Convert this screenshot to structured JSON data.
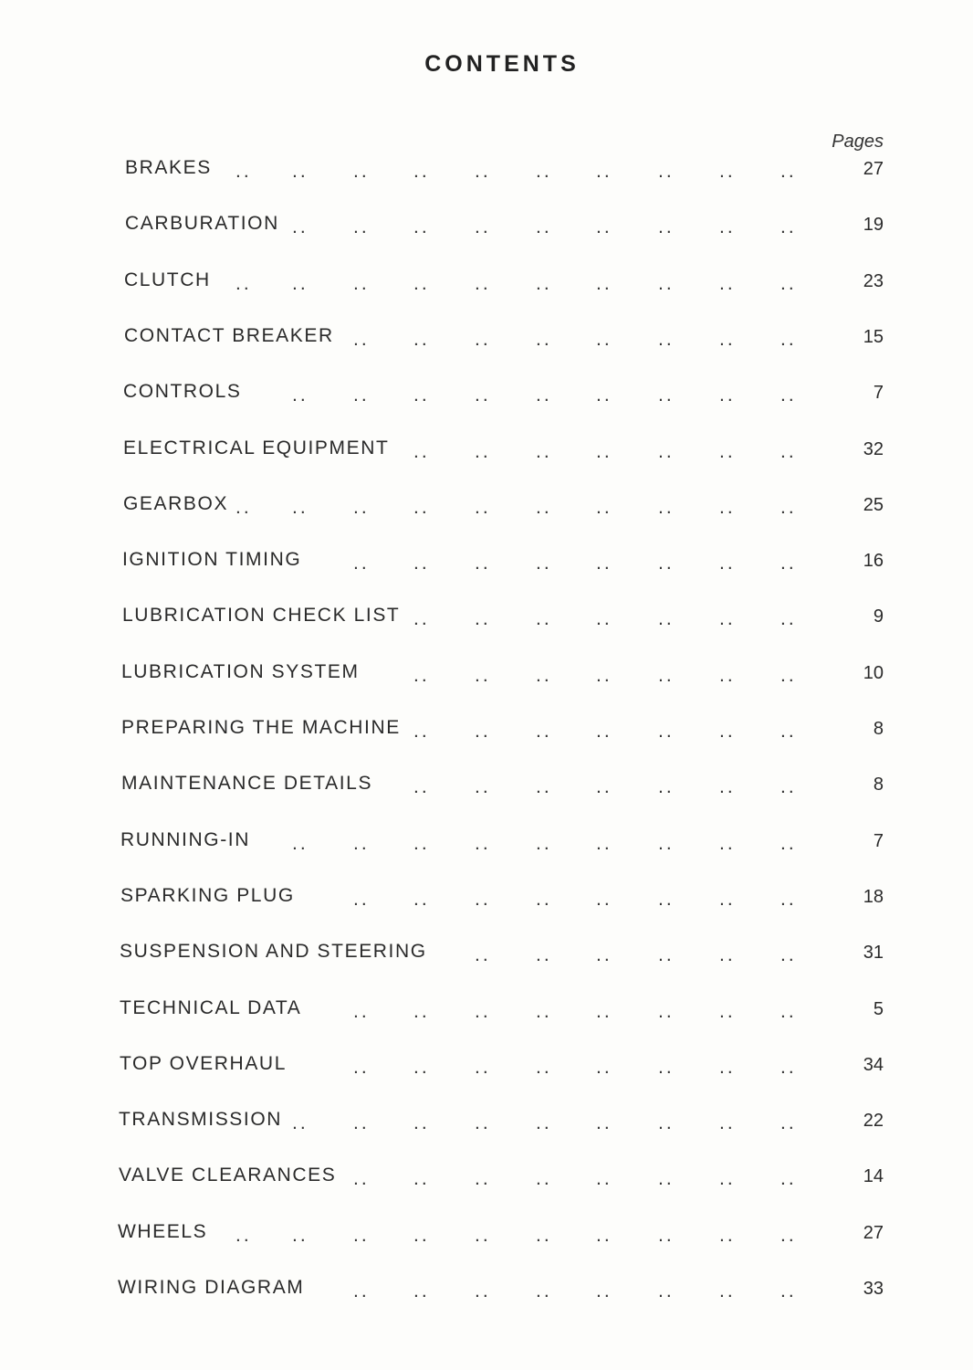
{
  "title": "CONTENTS",
  "pages_label": "Pages",
  "entries": [
    {
      "label": "BRAKES",
      "page": "27"
    },
    {
      "label": "CARBURATION",
      "page": "19"
    },
    {
      "label": "CLUTCH",
      "page": "23"
    },
    {
      "label": "CONTACT BREAKER",
      "page": "15"
    },
    {
      "label": "CONTROLS",
      "page": "7"
    },
    {
      "label": "ELECTRICAL EQUIPMENT",
      "page": "32"
    },
    {
      "label": "GEARBOX",
      "page": "25"
    },
    {
      "label": "IGNITION TIMING",
      "page": "16"
    },
    {
      "label": "LUBRICATION CHECK LIST",
      "page": "9"
    },
    {
      "label": "LUBRICATION SYSTEM",
      "page": "10"
    },
    {
      "label": "PREPARING THE MACHINE",
      "page": "8"
    },
    {
      "label": "MAINTENANCE DETAILS",
      "page": "8"
    },
    {
      "label": "RUNNING-IN",
      "page": "7"
    },
    {
      "label": "SPARKING PLUG",
      "page": "18"
    },
    {
      "label": "SUSPENSION AND STEERING",
      "page": "31"
    },
    {
      "label": "TECHNICAL DATA",
      "page": "5"
    },
    {
      "label": "TOP OVERHAUL",
      "page": "34"
    },
    {
      "label": "TRANSMISSION",
      "page": "22"
    },
    {
      "label": "VALVE CLEARANCES",
      "page": "14"
    },
    {
      "label": "WHEELS",
      "page": "27"
    },
    {
      "label": "WIRING DIAGRAM",
      "page": "33"
    }
  ]
}
